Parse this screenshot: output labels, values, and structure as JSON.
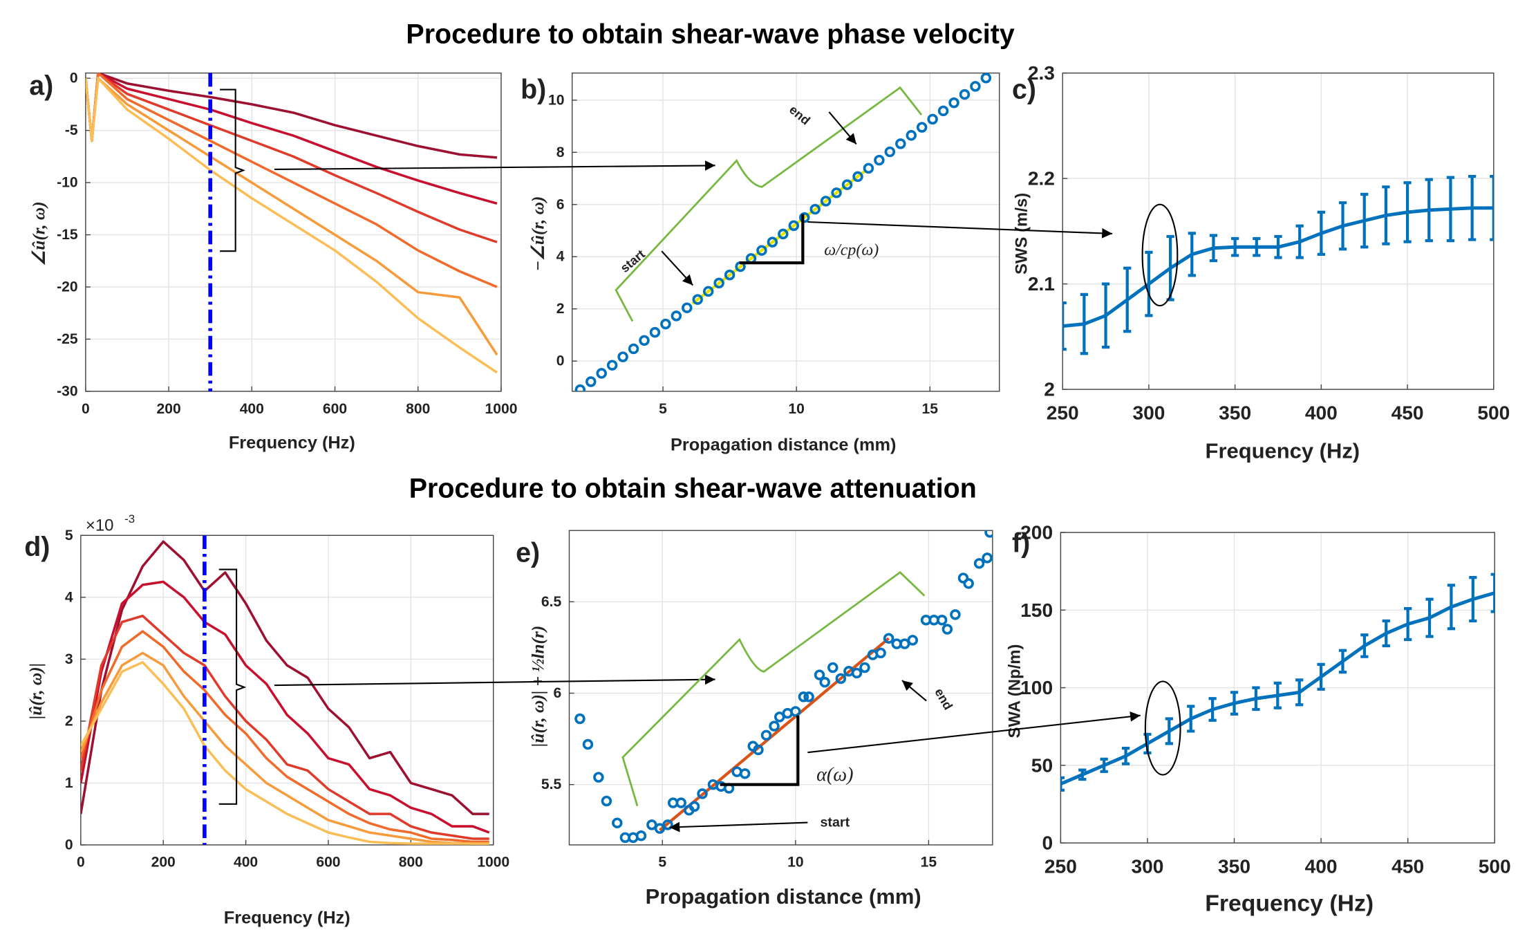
{
  "titles": [
    "Procedure to obtain shear-wave phase velocity",
    "Procedure to obtain shear-wave attenuation"
  ],
  "chart_data": [
    {
      "type": "line",
      "panel_label": "a)",
      "xlabel": "Frequency (Hz)",
      "ylabel": "∠û(r, ω)",
      "x": [
        0,
        15,
        30,
        100,
        200,
        300,
        400,
        500,
        600,
        700,
        800,
        900,
        990
      ],
      "series": [
        {
          "color": "#9e1030",
          "values": [
            0,
            -6,
            0.5,
            -0.5,
            -1.2,
            -1.8,
            -2.5,
            -3.3,
            -4.5,
            -5.5,
            -6.5,
            -7.3,
            -7.6
          ]
        },
        {
          "color": "#c8102e",
          "values": [
            0,
            -6,
            0.5,
            -1,
            -2,
            -3,
            -4.3,
            -5.5,
            -7,
            -8.5,
            -9.8,
            -11,
            -12
          ]
        },
        {
          "color": "#e03a2a",
          "values": [
            0,
            -6,
            0.5,
            -1.5,
            -3,
            -4.5,
            -6,
            -7.5,
            -9.3,
            -11,
            -12.8,
            -14.5,
            -15.7
          ]
        },
        {
          "color": "#f06a2a",
          "values": [
            0,
            -6,
            0.5,
            -2,
            -4,
            -6,
            -8,
            -10,
            -12,
            -14,
            -16.5,
            -18.5,
            -20
          ]
        },
        {
          "color": "#f79a3a",
          "values": [
            0,
            -6,
            0,
            -2.5,
            -5,
            -7.5,
            -10,
            -12.5,
            -15,
            -17.5,
            -20.5,
            -21,
            -26.5
          ]
        },
        {
          "color": "#fbbd55",
          "values": [
            0,
            -6,
            0,
            -3,
            -5.8,
            -8.8,
            -11.5,
            -14,
            -16.5,
            -19.5,
            -23,
            -25.8,
            -28.2
          ]
        }
      ],
      "marker_x": 300,
      "marker_color": "#0000ff",
      "xlim": [
        0,
        1000
      ],
      "ylim": [
        -30,
        0.5
      ],
      "xticks": [
        0,
        200,
        400,
        600,
        800,
        1000
      ],
      "yticks": [
        0,
        -5,
        -10,
        -15,
        -20,
        -25,
        -30
      ],
      "grid": true
    },
    {
      "type": "scatter",
      "panel_label": "b)",
      "xlabel": "Propagation distance (mm)",
      "ylabel": "−∠û(r, ω)",
      "x": [
        1.9,
        2.3,
        2.7,
        3.1,
        3.5,
        3.9,
        4.3,
        4.7,
        5.1,
        5.5,
        5.9,
        6.3,
        6.7,
        7.1,
        7.5,
        7.9,
        8.3,
        8.7,
        9.1,
        9.5,
        9.9,
        10.3,
        10.7,
        11.1,
        11.5,
        11.9,
        12.3,
        12.7,
        13.1,
        13.5,
        13.9,
        14.3,
        14.7,
        15.1,
        15.5,
        15.9,
        16.3,
        16.7,
        17.1
      ],
      "values": [
        -1.1,
        -0.79,
        -0.47,
        -0.16,
        0.16,
        0.47,
        0.79,
        1.1,
        1.42,
        1.73,
        2.04,
        2.36,
        2.67,
        2.99,
        3.3,
        3.62,
        3.93,
        4.24,
        4.56,
        4.87,
        5.19,
        5.5,
        5.82,
        6.13,
        6.45,
        6.76,
        7.07,
        7.39,
        7.7,
        8.02,
        8.33,
        8.65,
        8.96,
        9.27,
        9.59,
        9.9,
        10.22,
        10.53,
        10.85
      ],
      "color": "#0072bd",
      "fit": {
        "x": [
          6.1,
          12.6
        ],
        "values": [
          2.2,
          7.31
        ],
        "color": "#e5e500"
      },
      "annotations": [
        "start",
        "end",
        "ω/cp(ω)"
      ],
      "xlim": [
        1.6,
        17.6
      ],
      "ylim": [
        -1.16,
        11.04
      ],
      "xticks": [
        5,
        10,
        15
      ],
      "yticks": [
        0,
        2,
        4,
        6,
        8,
        10
      ],
      "grid": true
    },
    {
      "type": "errorbar",
      "panel_label": "c)",
      "xlabel": "Frequency (Hz)",
      "ylabel": "SWS (m/s)",
      "x": [
        250,
        262.5,
        275,
        287.5,
        300,
        312.5,
        325,
        337.5,
        350,
        362.5,
        375,
        387.5,
        400,
        412.5,
        425,
        437.5,
        450,
        462.5,
        475,
        487.5,
        500
      ],
      "values": [
        2.06,
        2.062,
        2.07,
        2.085,
        2.1,
        2.115,
        2.128,
        2.134,
        2.135,
        2.135,
        2.135,
        2.14,
        2.148,
        2.155,
        2.16,
        2.165,
        2.168,
        2.17,
        2.171,
        2.172,
        2.172
      ],
      "errors": [
        0.022,
        0.028,
        0.03,
        0.03,
        0.03,
        0.03,
        0.02,
        0.012,
        0.008,
        0.008,
        0.01,
        0.015,
        0.02,
        0.022,
        0.025,
        0.027,
        0.028,
        0.029,
        0.03,
        0.03,
        0.03
      ],
      "color": "#0072bd",
      "xlim": [
        250,
        500
      ],
      "ylim": [
        2,
        2.3
      ],
      "xticks": [
        250,
        300,
        350,
        400,
        450,
        500
      ],
      "yticks": [
        2,
        2.1,
        2.2,
        2.3
      ],
      "grid": true
    },
    {
      "type": "line",
      "panel_label": "d)",
      "xlabel": "Frequency (Hz)",
      "ylabel": "|û(r, ω)|",
      "y_multiplier": "×10",
      "y_exponent": "-3",
      "x": [
        0,
        50,
        100,
        150,
        200,
        250,
        300,
        350,
        400,
        450,
        500,
        550,
        600,
        650,
        700,
        750,
        800,
        850,
        900,
        950,
        990
      ],
      "series": [
        {
          "color": "#9e1030",
          "values": [
            0.5,
            2.5,
            3.8,
            4.5,
            4.9,
            4.6,
            4.1,
            4.4,
            3.9,
            3.3,
            2.9,
            2.7,
            2.2,
            1.9,
            1.4,
            1.5,
            1.0,
            0.9,
            0.8,
            0.5,
            0.5
          ]
        },
        {
          "color": "#c8102e",
          "values": [
            1.0,
            2.8,
            3.9,
            4.2,
            4.25,
            4.0,
            3.6,
            3.4,
            2.9,
            2.6,
            2.1,
            1.8,
            1.4,
            1.3,
            0.9,
            0.8,
            0.6,
            0.5,
            0.3,
            0.3,
            0.2
          ]
        },
        {
          "color": "#e03a2a",
          "values": [
            1.2,
            2.9,
            3.6,
            3.7,
            3.4,
            3.1,
            2.9,
            2.4,
            2.0,
            1.7,
            1.3,
            1.2,
            0.9,
            0.7,
            0.5,
            0.5,
            0.3,
            0.2,
            0.15,
            0.1,
            0.1
          ]
        },
        {
          "color": "#f06a2a",
          "values": [
            1.4,
            2.5,
            3.2,
            3.45,
            3.2,
            2.8,
            2.5,
            2.1,
            1.8,
            1.4,
            1.1,
            0.9,
            0.7,
            0.5,
            0.35,
            0.25,
            0.2,
            0.1,
            0.08,
            0.05,
            0.05
          ]
        },
        {
          "color": "#f79a3a",
          "values": [
            1.5,
            2.3,
            2.9,
            3.1,
            2.9,
            2.4,
            2.0,
            1.6,
            1.3,
            1.0,
            0.8,
            0.6,
            0.4,
            0.3,
            0.2,
            0.15,
            0.1,
            0.05,
            0.03,
            0.02,
            0.02
          ]
        },
        {
          "color": "#fbbd55",
          "values": [
            1.6,
            2.2,
            2.8,
            2.95,
            2.6,
            2.2,
            1.6,
            1.2,
            0.9,
            0.7,
            0.5,
            0.35,
            0.2,
            0.12,
            0.05,
            0.03,
            0.02,
            0.02,
            0.02,
            0.02,
            0.02
          ]
        }
      ],
      "marker_x": 300,
      "marker_color": "#0000ff",
      "xlim": [
        0,
        1000
      ],
      "ylim": [
        0,
        5
      ],
      "xticks": [
        0,
        200,
        400,
        600,
        800,
        1000
      ],
      "yticks": [
        0,
        1,
        2,
        3,
        4,
        5
      ],
      "grid": true
    },
    {
      "type": "scatter",
      "panel_label": "e)",
      "xlabel": "Propagation distance (mm)",
      "ylabel": "|û(r, ω)| + ½ln(r)",
      "x": [
        1.9,
        2.2,
        2.6,
        2.9,
        3.3,
        3.6,
        3.9,
        4.2,
        4.6,
        4.9,
        5.2,
        5.4,
        5.7,
        6.0,
        6.2,
        6.5,
        6.9,
        7.2,
        7.5,
        7.8,
        8.1,
        8.4,
        8.6,
        8.9,
        9.2,
        9.4,
        9.7,
        10.0,
        10.3,
        10.5,
        10.9,
        11.1,
        11.4,
        11.7,
        12.0,
        12.3,
        12.6,
        12.9,
        13.2,
        13.5,
        13.8,
        14.1,
        14.4,
        14.9,
        15.2,
        15.5,
        15.7,
        16.0,
        16.3,
        16.5,
        16.9,
        17.2,
        17.3
      ],
      "values": [
        5.86,
        5.72,
        5.54,
        5.41,
        5.29,
        5.21,
        5.21,
        5.22,
        5.28,
        5.26,
        5.28,
        5.4,
        5.4,
        5.36,
        5.38,
        5.45,
        5.5,
        5.49,
        5.48,
        5.57,
        5.56,
        5.71,
        5.69,
        5.77,
        5.82,
        5.87,
        5.89,
        5.9,
        5.98,
        5.98,
        6.1,
        6.06,
        6.14,
        6.08,
        6.12,
        6.11,
        6.14,
        6.21,
        6.22,
        6.3,
        6.27,
        6.27,
        6.29,
        6.4,
        6.4,
        6.4,
        6.35,
        6.43,
        6.63,
        6.6,
        6.71,
        6.74,
        6.88
      ],
      "color": "#0072bd",
      "fit": {
        "x": [
          4.9,
          13.5
        ],
        "values": [
          5.25,
          6.3
        ],
        "color": "#d95319"
      },
      "annotations": [
        "start",
        "end",
        "α(ω)"
      ],
      "xlim": [
        1.5,
        17.4
      ],
      "ylim": [
        5.17,
        6.89
      ],
      "xticks": [
        5,
        10,
        15
      ],
      "yticks": [
        5.5,
        6,
        6.5
      ],
      "grid": true
    },
    {
      "type": "errorbar",
      "panel_label": "f)",
      "xlabel": "Frequency (Hz)",
      "ylabel": "SWA (Np/m)",
      "x": [
        250,
        262.5,
        275,
        287.5,
        300,
        312.5,
        325,
        337.5,
        350,
        362.5,
        375,
        387.5,
        400,
        412.5,
        425,
        437.5,
        450,
        462.5,
        475,
        487.5,
        500
      ],
      "values": [
        38,
        44,
        50,
        56,
        64,
        72,
        80,
        86,
        90,
        93,
        95,
        97,
        107,
        117,
        127,
        135,
        141,
        145,
        152,
        157,
        161
      ],
      "errors": [
        4,
        3,
        4,
        5,
        6,
        8,
        8,
        7,
        7,
        7,
        8,
        8,
        8,
        7,
        7,
        8,
        10,
        12,
        14,
        14,
        12
      ],
      "color": "#0072bd",
      "xlim": [
        250,
        500
      ],
      "ylim": [
        0,
        200
      ],
      "xticks": [
        250,
        300,
        350,
        400,
        450,
        500
      ],
      "yticks": [
        0,
        50,
        100,
        150,
        200
      ],
      "grid": true
    }
  ]
}
